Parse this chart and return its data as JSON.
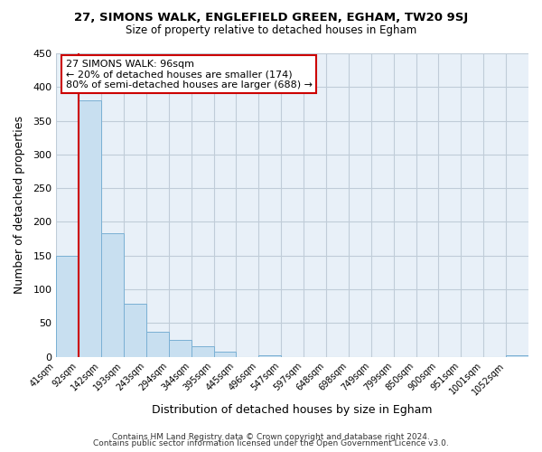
{
  "title": "27, SIMONS WALK, ENGLEFIELD GREEN, EGHAM, TW20 9SJ",
  "subtitle": "Size of property relative to detached houses in Egham",
  "xlabel": "Distribution of detached houses by size in Egham",
  "ylabel": "Number of detached properties",
  "bar_color": "#c8dff0",
  "bar_edge_color": "#7ab0d4",
  "bg_color": "#e8f0f8",
  "vline_color": "#cc0000",
  "vline_x_index": 1,
  "annotation_title": "27 SIMONS WALK: 96sqm",
  "annotation_line1": "← 20% of detached houses are smaller (174)",
  "annotation_line2": "80% of semi-detached houses are larger (688) →",
  "categories": [
    "41sqm",
    "92sqm",
    "142sqm",
    "193sqm",
    "243sqm",
    "294sqm",
    "344sqm",
    "395sqm",
    "445sqm",
    "496sqm",
    "547sqm",
    "597sqm",
    "648sqm",
    "698sqm",
    "749sqm",
    "799sqm",
    "850sqm",
    "900sqm",
    "951sqm",
    "1001sqm",
    "1052sqm"
  ],
  "bar_heights": [
    150,
    380,
    183,
    78,
    37,
    25,
    16,
    7,
    0,
    2,
    0,
    0,
    0,
    0,
    0,
    0,
    0,
    0,
    0,
    0,
    2
  ],
  "ylim": [
    0,
    450
  ],
  "yticks": [
    0,
    50,
    100,
    150,
    200,
    250,
    300,
    350,
    400,
    450
  ],
  "footer_line1": "Contains HM Land Registry data © Crown copyright and database right 2024.",
  "footer_line2": "Contains public sector information licensed under the Open Government Licence v3.0.",
  "grid_color": "#c0ccd8",
  "ann_box_color": "#cc0000"
}
